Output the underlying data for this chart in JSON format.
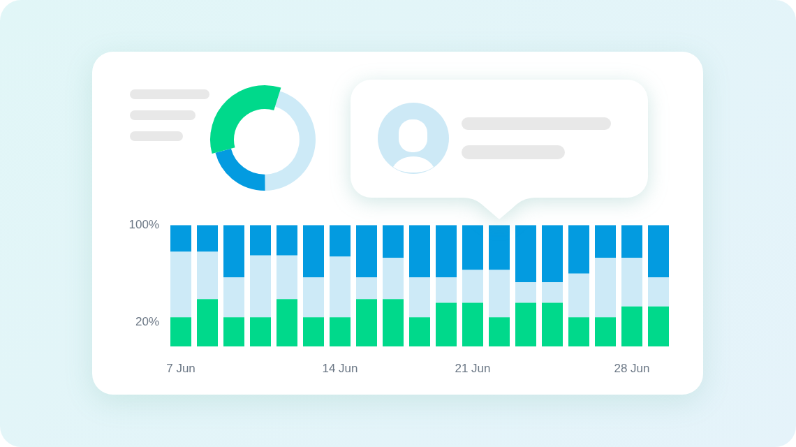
{
  "chart_data": [
    {
      "type": "donut",
      "categories": [
        null,
        null,
        null
      ],
      "values": [
        45,
        21,
        34
      ],
      "colors": [
        "#cdeaf7",
        "#039be0",
        "#00d98b"
      ]
    },
    {
      "type": "bar",
      "stacked": true,
      "categories": [
        "7 Jun",
        null,
        null,
        null,
        null,
        null,
        "14 Jun",
        null,
        null,
        null,
        null,
        "21 Jun",
        null,
        null,
        null,
        null,
        null,
        "28 Jun",
        null
      ],
      "series": [
        {
          "color": "#00d98b",
          "values": [
            24,
            39,
            24,
            24,
            39,
            24,
            24,
            39,
            39,
            24,
            36,
            36,
            24,
            36,
            36,
            24,
            24,
            33,
            33
          ]
        },
        {
          "color": "#cdeaf7",
          "values": [
            54,
            39,
            33,
            51,
            36,
            33,
            50,
            18,
            34,
            33,
            21,
            27,
            39,
            17,
            17,
            36,
            49,
            40,
            24
          ]
        },
        {
          "color": "#039be0",
          "values": [
            22,
            22,
            43,
            25,
            25,
            43,
            26,
            43,
            27,
            43,
            43,
            37,
            37,
            47,
            47,
            40,
            27,
            27,
            43
          ]
        }
      ],
      "ylim": [
        0,
        100
      ],
      "yticks": [
        {
          "value": 20,
          "label": "20%"
        },
        {
          "value": 100,
          "label": "100%"
        }
      ]
    }
  ]
}
